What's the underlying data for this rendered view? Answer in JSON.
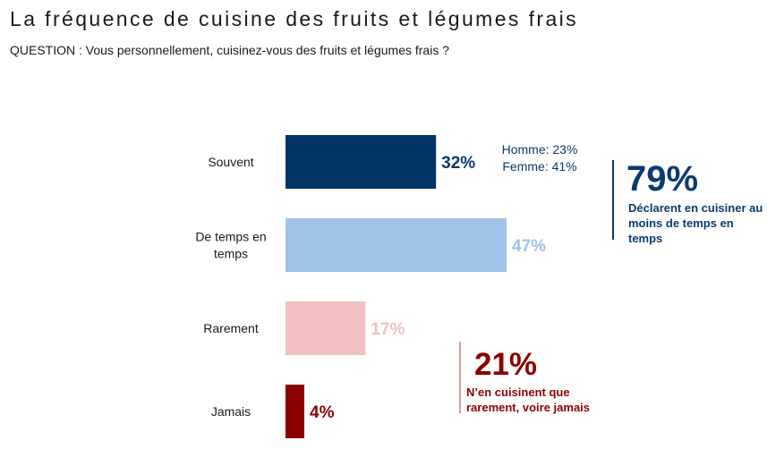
{
  "title": "La fréquence de cuisine des fruits et légumes frais",
  "question": "QUESTION : Vous personnellement, cuisinez-vous des fruits et légumes frais ?",
  "chart_data": {
    "type": "bar",
    "orientation": "horizontal",
    "categories": [
      "Souvent",
      "De temps en temps",
      "Rarement",
      "Jamais"
    ],
    "category_lines": [
      [
        "Souvent"
      ],
      [
        "De temps en",
        "temps"
      ],
      [
        "Rarement"
      ],
      [
        "Jamais"
      ]
    ],
    "values": [
      32,
      47,
      17,
      4
    ],
    "value_labels": [
      "32%",
      "47%",
      "17%",
      "4%"
    ],
    "colors": [
      "#003366",
      "#a0c3e8",
      "#f2c0c0",
      "#8b0000"
    ],
    "label_colors": [
      "#0c3a6e",
      "#a0c3e8",
      "#f2c0c0",
      "#8b0000"
    ],
    "xlim": [
      0,
      100
    ],
    "grid": false
  },
  "annotations": {
    "gender": {
      "homme": "Homme: 23%",
      "femme": "Femme: 41%"
    },
    "often_total": {
      "value": "79%",
      "text": "Déclarent en cuisiner au moins de temps en temps"
    },
    "rare_total": {
      "value": "21%",
      "text": "N’en cuisinent que rarement, voire jamais"
    }
  }
}
